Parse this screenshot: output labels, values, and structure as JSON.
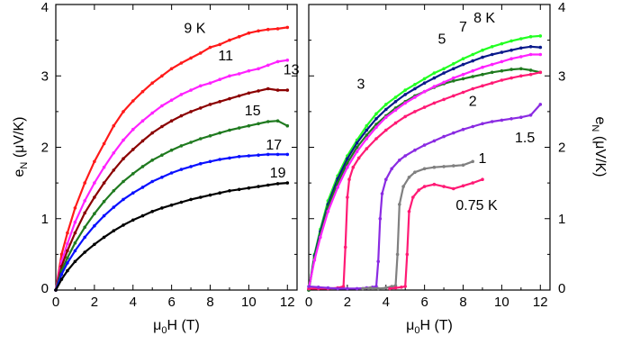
{
  "chart_data": [
    {
      "type": "line",
      "xlabel": "μ0H (T)",
      "ylabel": "eN (μV/K)",
      "xlim": [
        0,
        12.5
      ],
      "ylim": [
        0,
        4
      ],
      "xticks": [
        0,
        2,
        4,
        6,
        8,
        10,
        12
      ],
      "yticks": [
        0,
        1,
        2,
        3,
        4
      ],
      "grid": false,
      "series": [
        {
          "name": "9 K",
          "color": "#ff1a1a",
          "label_x": 7.2,
          "label_y": 3.6,
          "x": [
            0,
            0.3,
            0.6,
            1,
            1.5,
            2,
            2.5,
            3,
            3.5,
            4,
            4.5,
            5,
            5.5,
            6,
            6.5,
            7,
            7.5,
            8,
            8.5,
            9,
            9.5,
            10,
            10.5,
            11,
            11.5,
            12
          ],
          "y": [
            0,
            0.5,
            0.8,
            1.15,
            1.5,
            1.8,
            2.05,
            2.3,
            2.5,
            2.65,
            2.78,
            2.9,
            3.0,
            3.1,
            3.18,
            3.25,
            3.32,
            3.4,
            3.44,
            3.5,
            3.55,
            3.6,
            3.63,
            3.65,
            3.66,
            3.68
          ]
        },
        {
          "name": "11",
          "color": "#ff22ff",
          "label_x": 8.8,
          "label_y": 3.22,
          "x": [
            0,
            0.3,
            0.6,
            1,
            1.5,
            2,
            2.5,
            3,
            3.5,
            4,
            4.5,
            5,
            5.5,
            6,
            6.5,
            7,
            7.5,
            8,
            8.5,
            9,
            9.5,
            10,
            10.5,
            11,
            11.5,
            12
          ],
          "y": [
            0,
            0.4,
            0.65,
            0.95,
            1.25,
            1.5,
            1.72,
            1.92,
            2.1,
            2.25,
            2.37,
            2.48,
            2.58,
            2.66,
            2.74,
            2.8,
            2.86,
            2.9,
            2.95,
            3.0,
            3.03,
            3.07,
            3.1,
            3.15,
            3.2,
            3.22
          ]
        },
        {
          "name": "13",
          "color": "#8b0000",
          "label_x": 12.2,
          "label_y": 3.02,
          "x": [
            0,
            0.3,
            0.6,
            1,
            1.5,
            2,
            2.5,
            3,
            3.5,
            4,
            4.5,
            5,
            5.5,
            6,
            6.5,
            7,
            7.5,
            8,
            8.5,
            9,
            9.5,
            10,
            10.5,
            11,
            11.5,
            12
          ],
          "y": [
            0,
            0.33,
            0.55,
            0.8,
            1.08,
            1.3,
            1.5,
            1.68,
            1.84,
            1.97,
            2.09,
            2.2,
            2.29,
            2.37,
            2.44,
            2.5,
            2.55,
            2.6,
            2.64,
            2.68,
            2.72,
            2.76,
            2.79,
            2.82,
            2.8,
            2.8
          ]
        },
        {
          "name": "15",
          "color": "#1f7a1f",
          "label_x": 10.2,
          "label_y": 2.45,
          "x": [
            0,
            0.3,
            0.6,
            1,
            1.5,
            2,
            2.5,
            3,
            3.5,
            4,
            4.5,
            5,
            5.5,
            6,
            6.5,
            7,
            7.5,
            8,
            8.5,
            9,
            9.5,
            10,
            10.5,
            11,
            11.5,
            12
          ],
          "y": [
            0,
            0.27,
            0.45,
            0.66,
            0.88,
            1.07,
            1.24,
            1.39,
            1.52,
            1.63,
            1.73,
            1.82,
            1.89,
            1.96,
            2.02,
            2.07,
            2.12,
            2.16,
            2.2,
            2.24,
            2.27,
            2.3,
            2.33,
            2.36,
            2.37,
            2.3
          ]
        },
        {
          "name": "17",
          "color": "#0a10ff",
          "label_x": 11.3,
          "label_y": 1.97,
          "x": [
            0,
            0.3,
            0.6,
            1,
            1.5,
            2,
            2.5,
            3,
            3.5,
            4,
            4.5,
            5,
            5.5,
            6,
            6.5,
            7,
            7.5,
            8,
            8.5,
            9,
            9.5,
            10,
            10.5,
            11,
            11.5,
            12
          ],
          "y": [
            0,
            0.22,
            0.38,
            0.55,
            0.74,
            0.9,
            1.04,
            1.16,
            1.27,
            1.36,
            1.44,
            1.52,
            1.58,
            1.64,
            1.69,
            1.73,
            1.77,
            1.8,
            1.83,
            1.85,
            1.87,
            1.88,
            1.89,
            1.9,
            1.9,
            1.9
          ]
        },
        {
          "name": "19",
          "color": "#000000",
          "label_x": 11.5,
          "label_y": 1.58,
          "x": [
            0,
            0.3,
            0.6,
            1,
            1.5,
            2,
            2.5,
            3,
            3.5,
            4,
            4.5,
            5,
            5.5,
            6,
            6.5,
            7,
            7.5,
            8,
            8.5,
            9,
            9.5,
            10,
            10.5,
            11,
            11.5,
            12
          ],
          "y": [
            0,
            0.15,
            0.27,
            0.4,
            0.53,
            0.64,
            0.74,
            0.83,
            0.91,
            0.98,
            1.04,
            1.1,
            1.15,
            1.19,
            1.23,
            1.27,
            1.3,
            1.33,
            1.36,
            1.39,
            1.41,
            1.43,
            1.45,
            1.47,
            1.49,
            1.5
          ]
        }
      ]
    },
    {
      "type": "line",
      "xlabel": "μ0H (T)",
      "ylabel": "eN (μV/K)",
      "xlim": [
        0,
        12.5
      ],
      "ylim": [
        0,
        4
      ],
      "xticks": [
        0,
        2,
        4,
        6,
        8,
        10,
        12
      ],
      "yticks": [
        0,
        1,
        2,
        3,
        4
      ],
      "grid": false,
      "series": [
        {
          "name": "8 K",
          "color": "#22ff22",
          "label_x": 9.1,
          "label_y": 3.75,
          "x": [
            0,
            0.3,
            0.6,
            1,
            1.5,
            2,
            2.5,
            3,
            3.5,
            4,
            4.5,
            5,
            5.5,
            6,
            6.5,
            7,
            7.5,
            8,
            8.5,
            9,
            9.5,
            10,
            10.5,
            11,
            11.5,
            12
          ],
          "y": [
            0,
            0.5,
            0.85,
            1.25,
            1.6,
            1.88,
            2.1,
            2.3,
            2.47,
            2.6,
            2.7,
            2.8,
            2.88,
            2.96,
            3.04,
            3.1,
            3.17,
            3.24,
            3.3,
            3.36,
            3.41,
            3.45,
            3.49,
            3.52,
            3.55,
            3.56
          ]
        },
        {
          "name": "7",
          "color": "#0a1a8b",
          "label_x": 8.0,
          "label_y": 3.62,
          "x": [
            0,
            0.3,
            0.6,
            1,
            1.5,
            2,
            2.5,
            3,
            3.5,
            4,
            4.5,
            5,
            5.5,
            6,
            6.5,
            7,
            7.5,
            8,
            8.5,
            9,
            9.5,
            10,
            10.5,
            11,
            11.5,
            12
          ],
          "y": [
            0,
            0.48,
            0.82,
            1.2,
            1.56,
            1.84,
            2.06,
            2.24,
            2.4,
            2.53,
            2.64,
            2.74,
            2.82,
            2.9,
            2.97,
            3.04,
            3.1,
            3.16,
            3.21,
            3.26,
            3.3,
            3.33,
            3.36,
            3.39,
            3.41,
            3.4
          ]
        },
        {
          "name": "5",
          "color": "#1f7a1f",
          "label_x": 6.9,
          "label_y": 3.45,
          "x": [
            0,
            0.3,
            0.6,
            1,
            1.5,
            2,
            2.5,
            3,
            3.5,
            4,
            4.5,
            5,
            5.5,
            6,
            6.5,
            7,
            7.5,
            8,
            8.5,
            9,
            9.5,
            10,
            10.5,
            11,
            11.5,
            12
          ],
          "y": [
            0,
            0.45,
            0.78,
            1.16,
            1.5,
            1.78,
            2.0,
            2.17,
            2.32,
            2.44,
            2.55,
            2.64,
            2.72,
            2.78,
            2.84,
            2.89,
            2.93,
            2.96,
            2.99,
            3.02,
            3.05,
            3.07,
            3.09,
            3.1,
            3.08,
            3.05
          ]
        },
        {
          "name": "3",
          "color": "#ff22ff",
          "label_x": 2.7,
          "label_y": 2.82,
          "x": [
            0,
            0.3,
            0.6,
            1,
            1.5,
            2,
            2.5,
            3,
            3.5,
            4,
            4.5,
            5,
            5.5,
            6,
            6.5,
            7,
            7.5,
            8,
            8.5,
            9,
            9.5,
            10,
            10.5,
            11,
            11.5,
            12
          ],
          "y": [
            0.02,
            0.42,
            0.74,
            1.1,
            1.44,
            1.72,
            1.94,
            2.12,
            2.28,
            2.42,
            2.52,
            2.62,
            2.7,
            2.78,
            2.85,
            2.91,
            2.97,
            3.02,
            3.07,
            3.12,
            3.16,
            3.2,
            3.24,
            3.27,
            3.3,
            3.3
          ]
        },
        {
          "name": "2",
          "color": "#ff1a75",
          "label_x": 8.5,
          "label_y": 2.58,
          "x": [
            0,
            0.5,
            1,
            1.5,
            1.8,
            1.9,
            2.0,
            2.1,
            2.3,
            2.6,
            3,
            3.5,
            4,
            4.5,
            5,
            5.5,
            6,
            6.5,
            7,
            7.5,
            8,
            8.5,
            9,
            9.5,
            10,
            10.5,
            11,
            11.5,
            12
          ],
          "y": [
            0.02,
            0.02,
            0.02,
            0.03,
            0.05,
            0.6,
            1.3,
            1.55,
            1.72,
            1.85,
            1.98,
            2.12,
            2.24,
            2.34,
            2.43,
            2.5,
            2.56,
            2.62,
            2.67,
            2.72,
            2.77,
            2.82,
            2.86,
            2.9,
            2.94,
            2.97,
            3.0,
            3.02,
            3.05
          ]
        },
        {
          "name": "1.5",
          "color": "#8a2be2",
          "label_x": 11.2,
          "label_y": 2.07,
          "x": [
            0,
            0.5,
            1,
            1.5,
            2,
            2.5,
            3,
            3.3,
            3.5,
            3.6,
            3.7,
            3.8,
            4.0,
            4.3,
            4.7,
            5,
            5.5,
            6,
            6.5,
            7,
            7.5,
            8,
            8.5,
            9,
            9.5,
            10,
            10.5,
            11,
            11.5,
            12
          ],
          "y": [
            0.05,
            0.04,
            0.03,
            0.02,
            0.02,
            0.02,
            0.03,
            0.04,
            0.05,
            0.4,
            1.0,
            1.35,
            1.55,
            1.7,
            1.82,
            1.88,
            1.96,
            2.03,
            2.09,
            2.15,
            2.2,
            2.25,
            2.29,
            2.33,
            2.36,
            2.38,
            2.4,
            2.42,
            2.45,
            2.6
          ]
        },
        {
          "name": "1",
          "color": "#808080",
          "label_x": 9.0,
          "label_y": 1.78,
          "x": [
            2.8,
            3.2,
            3.6,
            4.0,
            4.3,
            4.5,
            4.6,
            4.7,
            4.9,
            5.2,
            5.5,
            6,
            6.5,
            7,
            7.5,
            8,
            8.5
          ],
          "y": [
            0.02,
            0.03,
            0.02,
            0.03,
            0.05,
            0.06,
            0.5,
            1.2,
            1.45,
            1.58,
            1.65,
            1.7,
            1.72,
            1.73,
            1.74,
            1.75,
            1.8
          ]
        },
        {
          "name": "0.75 K",
          "color": "#ff1a75",
          "label_x": 8.7,
          "label_y": 1.12,
          "x": [
            4.2,
            4.5,
            4.8,
            5.0,
            5.1,
            5.2,
            5.4,
            5.7,
            6,
            6.5,
            7,
            7.5,
            8,
            8.5,
            9
          ],
          "y": [
            0.02,
            0.03,
            0.04,
            0.05,
            0.5,
            1.1,
            1.3,
            1.4,
            1.45,
            1.48,
            1.45,
            1.42,
            1.46,
            1.5,
            1.55
          ]
        }
      ]
    }
  ]
}
